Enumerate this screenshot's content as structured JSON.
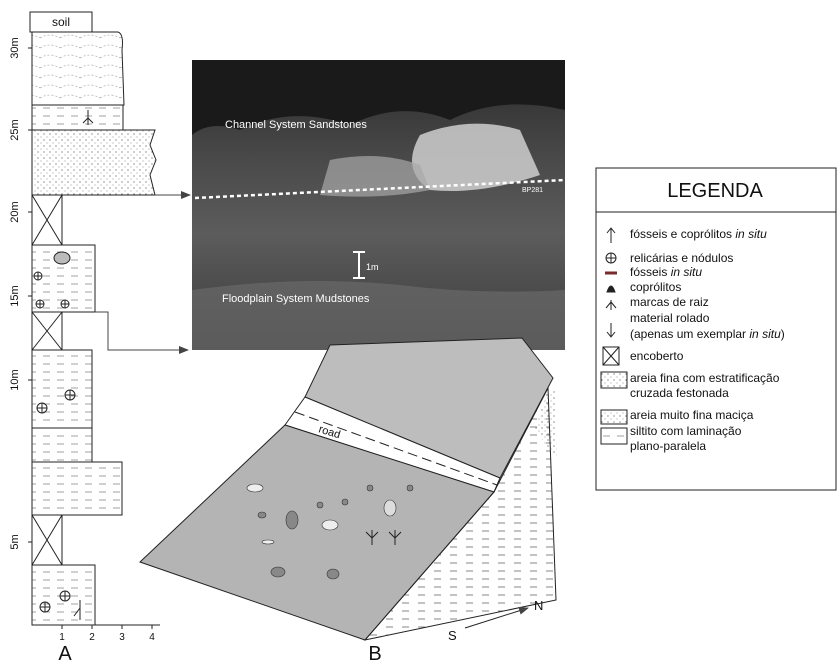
{
  "column": {
    "top_label": "soil",
    "depth_labels": [
      "30m",
      "25m",
      "20m",
      "15m",
      "10m",
      "5m"
    ],
    "grain_labels": [
      "1",
      "2",
      "3",
      "4"
    ],
    "panel_label": "A"
  },
  "photo": {
    "upper_label": "Channel System Sandstones",
    "sample_label": "BP281",
    "scale_label": "1m",
    "lower_label": "Floodplain System Mudstones"
  },
  "block": {
    "road_label": "road",
    "south_label": "S",
    "north_label": "N",
    "panel_label": "B"
  },
  "legend": {
    "title": "LEGENDA",
    "items": [
      {
        "lines": [
          [
            "fósseis e coprólitos ",
            "in situ"
          ]
        ]
      },
      {
        "lines": [
          [
            "relicárias e nódulos"
          ]
        ]
      },
      {
        "lines": [
          [
            "fósseis ",
            "in situ"
          ]
        ]
      },
      {
        "lines": [
          [
            "coprólitos"
          ]
        ]
      },
      {
        "lines": [
          [
            "marcas de raiz"
          ]
        ]
      },
      {
        "lines": [
          [
            "material rolado"
          ],
          [
            "(apenas um exemplar ",
            "in situ",
            ")"
          ]
        ]
      },
      {
        "lines": [
          [
            "encoberto"
          ]
        ]
      },
      {
        "lines": [
          [
            "areia fina com estratificação"
          ],
          [
            "cruzada festonada"
          ]
        ]
      },
      {
        "lines": [
          [
            "areia muito fina maciça"
          ]
        ]
      },
      {
        "lines": [
          [
            "siltito com laminação"
          ],
          [
            "plano-paralela"
          ]
        ]
      }
    ]
  }
}
